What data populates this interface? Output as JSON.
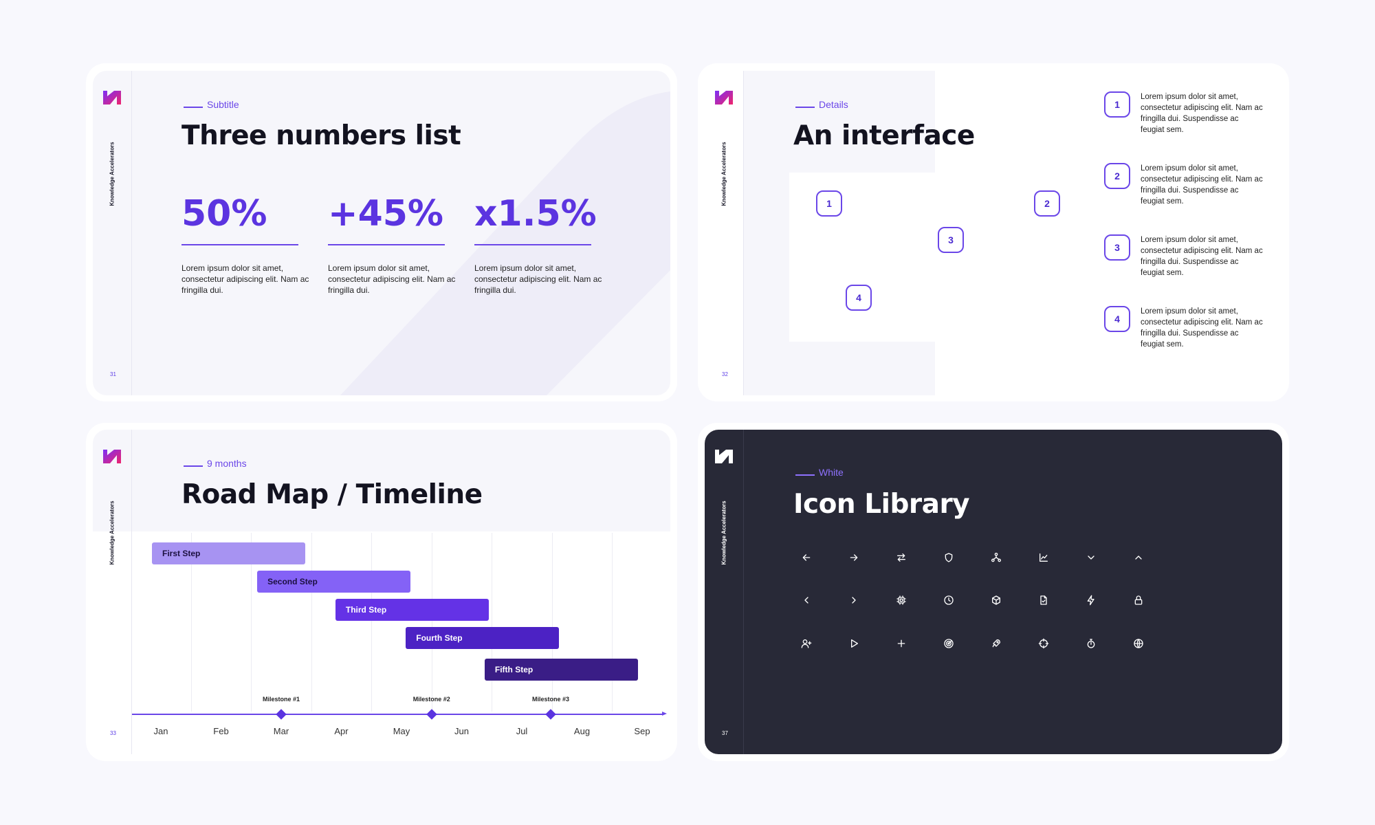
{
  "brand": {
    "name": "Knowledge Accelerators",
    "accent": "#6a46e8",
    "gradient": [
      "#7b2ff7",
      "#f0246b"
    ]
  },
  "slides": [
    {
      "page": "31",
      "eyebrow": "Subtitle",
      "title": "Three numbers list",
      "stats": [
        {
          "value": "50%",
          "text": "Lorem ipsum dolor sit amet, consectetur adipiscing elit. Nam ac fringilla dui."
        },
        {
          "value": "+45%",
          "text": "Lorem ipsum dolor sit amet, consectetur adipiscing elit. Nam ac fringilla dui."
        },
        {
          "value": "x1.5%",
          "text": "Lorem ipsum dolor sit amet, consectetur adipiscing elit. Nam ac fringilla dui."
        }
      ]
    },
    {
      "page": "32",
      "eyebrow": "Details",
      "title": "An interface",
      "markers": [
        "1",
        "2",
        "3",
        "4"
      ],
      "items": [
        {
          "num": "1",
          "text": "Lorem ipsum dolor sit amet, consectetur adipiscing elit. Nam ac fringilla dui. Suspendisse ac feugiat sem."
        },
        {
          "num": "2",
          "text": "Lorem ipsum dolor sit amet, consectetur adipiscing elit. Nam ac fringilla dui. Suspendisse ac feugiat sem."
        },
        {
          "num": "3",
          "text": "Lorem ipsum dolor sit amet, consectetur adipiscing elit. Nam ac fringilla dui. Suspendisse ac feugiat sem."
        },
        {
          "num": "4",
          "text": "Lorem ipsum dolor sit amet, consectetur adipiscing elit. Nam ac fringilla dui. Suspendisse ac feugiat sem."
        }
      ]
    },
    {
      "page": "33",
      "eyebrow": "9 months",
      "title": "Road Map / Timeline",
      "months": [
        "Jan",
        "Feb",
        "Mar",
        "Apr",
        "May",
        "Jun",
        "Jul",
        "Aug",
        "Sep"
      ],
      "steps": [
        {
          "label": "First Step",
          "start": 0.0,
          "end": 2.55,
          "color": "#a793f2"
        },
        {
          "label": "Second Step",
          "start": 1.75,
          "end": 4.3,
          "color": "#8462f6"
        },
        {
          "label": "Third Step",
          "start": 3.05,
          "end": 5.6,
          "color": "#6432e6"
        },
        {
          "label": "Fourth Step",
          "start": 4.22,
          "end": 6.77,
          "color": "#4c22c4"
        },
        {
          "label": "Fifth Step",
          "start": 5.53,
          "end": 8.08,
          "color": "#3a1d86"
        }
      ],
      "milestones": [
        {
          "label": "Milestone #1",
          "at": 2.0
        },
        {
          "label": "Milestone #2",
          "at": 4.5
        },
        {
          "label": "Milestone #3",
          "at": 6.48
        }
      ]
    },
    {
      "page": "37",
      "eyebrow": "White",
      "title": "Icon Library",
      "icons": [
        [
          "arrow-left-icon",
          "arrow-right-icon",
          "swap-arrows-icon",
          "shield-icon",
          "network-icon",
          "line-chart-icon",
          "chevron-down-icon",
          "chevron-up-icon"
        ],
        [
          "chevron-left-icon",
          "chevron-right-icon",
          "cpu-chip-icon",
          "clock-icon",
          "cube-icon",
          "document-check-icon",
          "lightning-icon",
          "lock-icon"
        ],
        [
          "user-plus-icon",
          "play-icon",
          "plus-icon",
          "radar-icon",
          "rocket-icon",
          "crosshair-icon",
          "stopwatch-icon",
          "globe-icon"
        ]
      ]
    }
  ]
}
